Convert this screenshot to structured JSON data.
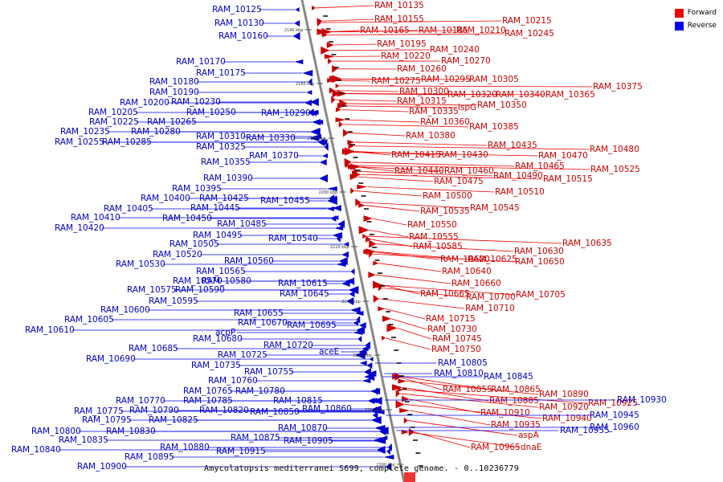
{
  "caption": "Amycolatopsis mediterranei S699, complete genome. - 0..10236779",
  "legend": {
    "forward": {
      "label": "Forward",
      "color": "#ee0000"
    },
    "reverse": {
      "label": "Reverse",
      "color": "#0000ee"
    }
  },
  "ticks": [
    "2140 kbp",
    "2160 kbp",
    "2180 kbp",
    "2200 kbp",
    "2220 kbp",
    "2240 kbp",
    "2260 kbp",
    "2280 kbp",
    "2300 kbp"
  ],
  "forward_labels": [
    "RAM_10135",
    "RAM_10155",
    "RAM_10165",
    "RAM_10185",
    "RAM_10210",
    "RAM_10215",
    "RAM_10245",
    "RAM_10195",
    "RAM_10240",
    "RAM_10220",
    "RAM_10270",
    "RAM_10260",
    "RAM_10275",
    "RAM_10295",
    "RAM_10305",
    "RAM_10375",
    "RAM_10300",
    "RAM_10320",
    "RAM_10340",
    "RAM_10365",
    "RAM_10315",
    "RAM_10335",
    "ispG",
    "RAM_10350",
    "RAM_10360",
    "RAM_10385",
    "RAM_10380",
    "RAM_10435",
    "RAM_10415",
    "RAM_10430",
    "RAM_10470",
    "RAM_10480",
    "RAM_10465",
    "RAM_10440",
    "RAM_10460",
    "RAM_10490",
    "RAM_10525",
    "RAM_10475",
    "RAM_10515",
    "RAM_10510",
    "RAM_10500",
    "RAM_10545",
    "RAM_10535",
    "RAM_10550",
    "RAM_10555",
    "RAM_10635",
    "RAM_10585",
    "RAM_10630",
    "RAM_10620",
    "RAM_10625",
    "RAM_10650",
    "RAM_10640",
    "RAM_10660",
    "RAM_10665",
    "RAM_10705",
    "RAM_10700",
    "RAM_10710",
    "RAM_10715",
    "RAM_10730",
    "RAM_10745",
    "RAM_10750",
    "RAM_10855",
    "RAM_10865",
    "RAM_10890",
    "RAM_10885",
    "RAM_10920",
    "RAM_10925",
    "RAM_10910",
    "RAM_10940",
    "RAM_10935",
    "aspA",
    "RAM_10965",
    "dnaE"
  ],
  "reverse_labels": [
    "RAM_10125",
    "RAM_10130",
    "RAM_10160",
    "RAM_10170",
    "RAM_10175",
    "RAM_10180",
    "RAM_10190",
    "RAM_10200",
    "RAM_10230",
    "RAM_10250",
    "RAM_10290",
    "RAM_10205",
    "RAM_10225",
    "RAM_10265",
    "RAM_10235",
    "RAM_10280",
    "RAM_10255",
    "RAM_10285",
    "RAM_10310",
    "RAM_10330",
    "RAM_10325",
    "RAM_10370",
    "RAM_10355",
    "RAM_10390",
    "RAM_10395",
    "RAM_10400",
    "RAM_10425",
    "RAM_10405",
    "RAM_10445",
    "RAM_10455",
    "RAM_10410",
    "RAM_10450",
    "RAM_10485",
    "RAM_10420",
    "RAM_10495",
    "RAM_10540",
    "RAM_10505",
    "RAM_10520",
    "RAM_10560",
    "RAM_10530",
    "RAM_10565",
    "RAM_10570",
    "RAM_10580",
    "RAM_10615",
    "RAM_10575",
    "RAM_10590",
    "RAM_10645",
    "RAM_10595",
    "RAM_10655",
    "RAM_10600",
    "RAM_10605",
    "RAM_10670",
    "RAM_10695",
    "RAM_10610",
    "acpP",
    "RAM_10680",
    "RAM_10720",
    "RAM_10685",
    "aceE",
    "RAM_10725",
    "RAM_10690",
    "RAM_10735",
    "RAM_10755",
    "RAM_10760",
    "RAM_10765",
    "RAM_10780",
    "RAM_10770",
    "RAM_10785",
    "RAM_10815",
    "RAM_10775",
    "RAM_10790",
    "RAM_10820",
    "RAM_10850",
    "RAM_10860",
    "RAM_10795",
    "RAM_10825",
    "RAM_10800",
    "RAM_10830",
    "RAM_10870",
    "RAM_10835",
    "RAM_10880",
    "RAM_10875",
    "RAM_10905",
    "RAM_10840",
    "RAM_10895",
    "RAM_10915",
    "RAM_10900",
    "RAM_10805",
    "RAM_10810",
    "RAM_10845",
    "RAM_10930",
    "RAM_10945",
    "RAM_10955",
    "RAM_10960"
  ]
}
